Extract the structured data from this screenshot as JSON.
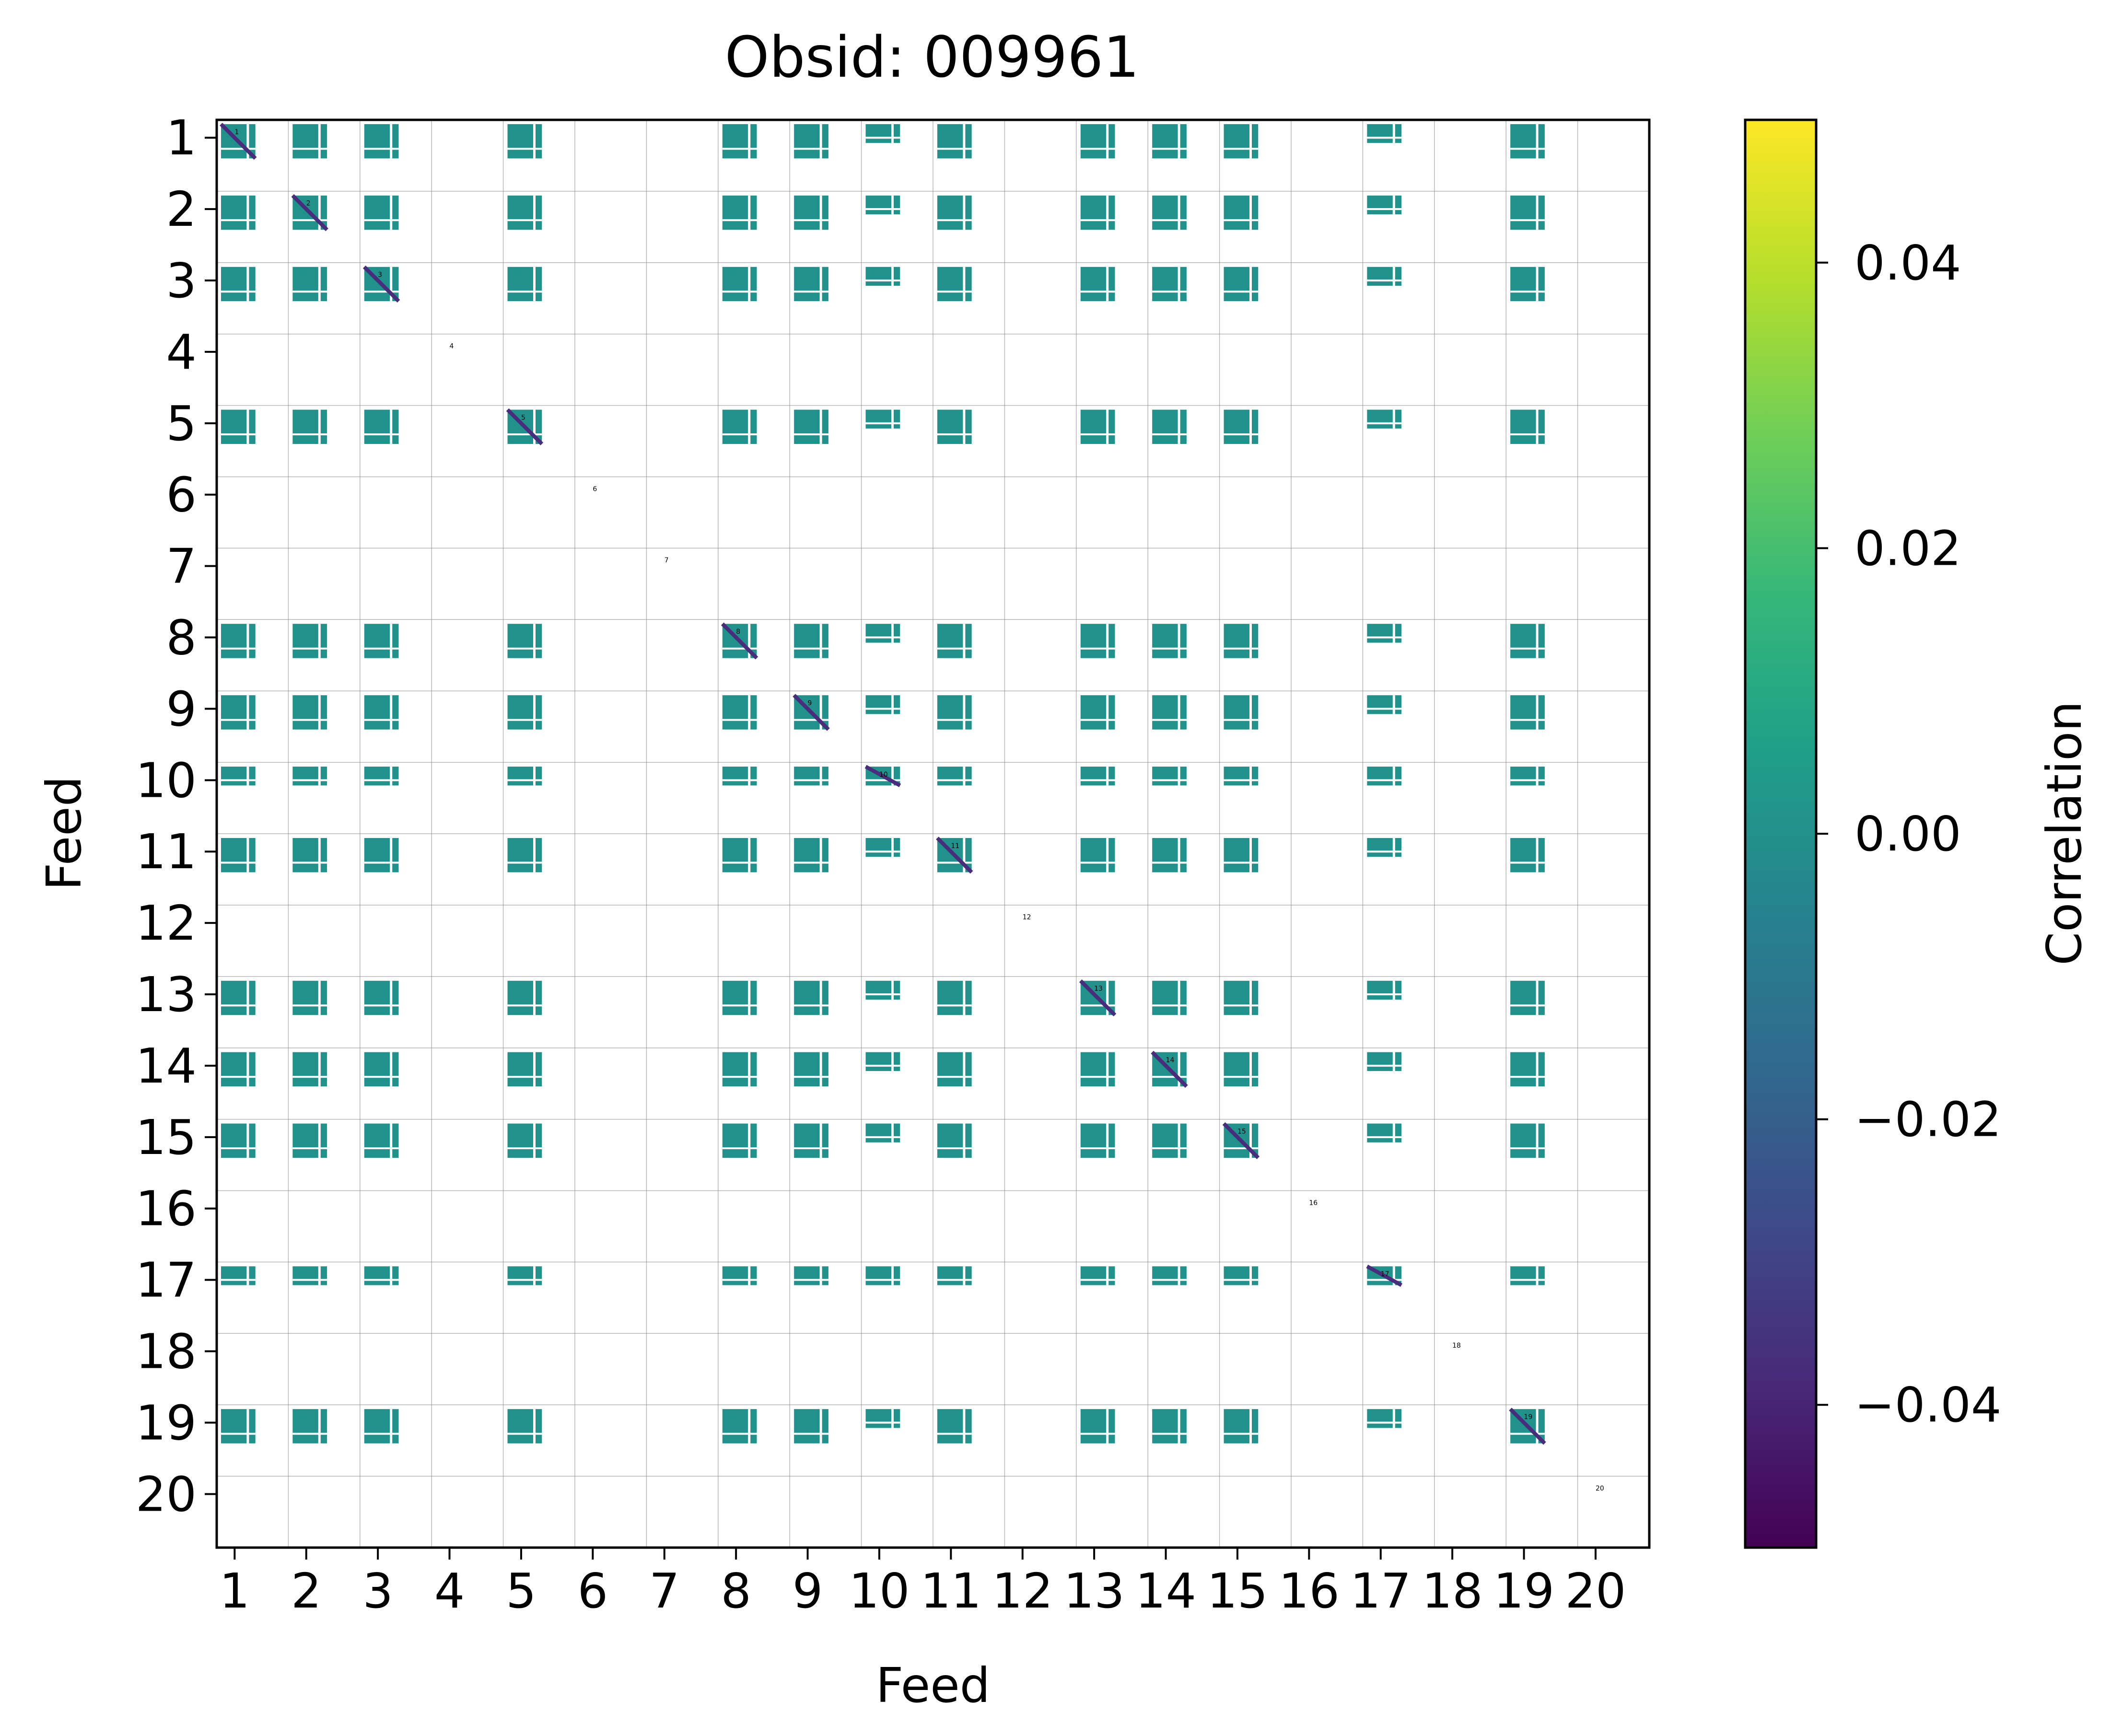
{
  "chart_data": {
    "type": "heatmap",
    "title": "Obsid: 009961",
    "xlabel": "Feed",
    "ylabel": "Feed",
    "colorbar_label": "Correlation",
    "feeds": [
      "1",
      "2",
      "3",
      "4",
      "5",
      "6",
      "7",
      "8",
      "9",
      "10",
      "11",
      "12",
      "13",
      "14",
      "15",
      "16",
      "17",
      "18",
      "19",
      "20"
    ],
    "active_feeds": [
      1,
      2,
      3,
      5,
      8,
      9,
      10,
      11,
      13,
      14,
      15,
      17,
      19
    ],
    "sparse_feeds": [
      10,
      17
    ],
    "clim": [
      -0.05,
      0.05
    ],
    "colorbar_ticks": [
      {
        "value": 0.04,
        "label": "0.04"
      },
      {
        "value": 0.02,
        "label": "0.02"
      },
      {
        "value": 0.0,
        "label": "0.00"
      },
      {
        "value": -0.02,
        "label": "−0.02"
      },
      {
        "value": -0.04,
        "label": "−0.04"
      }
    ],
    "colormap": "viridis",
    "colors": {
      "near_zero": "#21918c",
      "diagonal": "#472d7b",
      "viridis_stops": [
        "#440154",
        "#482878",
        "#3e4989",
        "#31688e",
        "#26828e",
        "#1f9e89",
        "#35b779",
        "#6ece58",
        "#b5de2b",
        "#fde725"
      ]
    }
  }
}
